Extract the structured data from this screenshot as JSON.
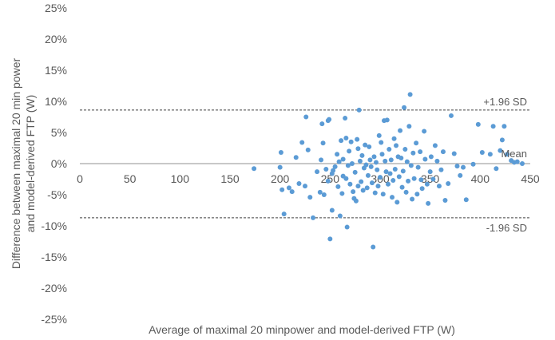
{
  "chart_data": {
    "type": "scatter",
    "xlabel": "Average of maximal 20 minpower and model-derived FTP (W)",
    "ylabel_line1": "Difference between maximal 20 min power",
    "ylabel_line2": "and model-derived FTP (W)",
    "xlim": [
      0,
      450
    ],
    "ylim": [
      -25,
      25
    ],
    "x_ticks": [
      0,
      50,
      100,
      150,
      200,
      250,
      300,
      350,
      400,
      450
    ],
    "y_ticks": [
      25,
      20,
      15,
      10,
      5,
      0,
      -5,
      -10,
      -15,
      -20,
      -25
    ],
    "x_tick_labels": [
      "0",
      "50",
      "100",
      "150",
      "200",
      "250",
      "300",
      "350",
      "400",
      "450"
    ],
    "y_tick_labels": [
      "25%",
      "20%",
      "15%",
      "10%",
      "5%",
      "0%",
      "-5%",
      "-10%",
      "-15%",
      "-20%",
      "-25%"
    ],
    "grid": false,
    "point_color": "#5b9bd5",
    "reference_lines": [
      {
        "label": "+1.96 SD",
        "y": 8.6,
        "style": "dashed"
      },
      {
        "label": "Mean",
        "y": 0,
        "style": "solid"
      },
      {
        "label": "-1.96 SD",
        "y": -8.7,
        "style": "dashed"
      }
    ],
    "points": [
      [
        174,
        -0.8
      ],
      [
        200,
        -0.6
      ],
      [
        201,
        1.8
      ],
      [
        202,
        -4.2
      ],
      [
        204,
        -8.1
      ],
      [
        209,
        -3.9
      ],
      [
        212,
        -4.5
      ],
      [
        216,
        1.0
      ],
      [
        219,
        -3.2
      ],
      [
        222,
        3.4
      ],
      [
        225,
        -3.6
      ],
      [
        226,
        7.5
      ],
      [
        228,
        2.2
      ],
      [
        230,
        -5.4
      ],
      [
        233,
        -8.7
      ],
      [
        237,
        -1.3
      ],
      [
        240,
        -4.6
      ],
      [
        241,
        0.6
      ],
      [
        242,
        6.4
      ],
      [
        243,
        3.3
      ],
      [
        244,
        -5.0
      ],
      [
        246,
        -0.9
      ],
      [
        248,
        6.9
      ],
      [
        248,
        -2.8
      ],
      [
        249,
        7.1
      ],
      [
        250,
        -12.1
      ],
      [
        252,
        -1.6
      ],
      [
        252,
        -7.5
      ],
      [
        253,
        -1.1
      ],
      [
        255,
        -0.5
      ],
      [
        257,
        1.5
      ],
      [
        258,
        -3.7
      ],
      [
        259,
        0.3
      ],
      [
        260,
        -8.4
      ],
      [
        261,
        3.7
      ],
      [
        262,
        -4.8
      ],
      [
        263,
        0.7
      ],
      [
        263,
        -2.0
      ],
      [
        265,
        7.3
      ],
      [
        266,
        4.1
      ],
      [
        266,
        -2.4
      ],
      [
        267,
        -10.2
      ],
      [
        268,
        -0.3
      ],
      [
        269,
        2.0
      ],
      [
        270,
        -3.3
      ],
      [
        271,
        3.5
      ],
      [
        272,
        0.0
      ],
      [
        273,
        -4.5
      ],
      [
        274,
        -5.6
      ],
      [
        275,
        -1.4
      ],
      [
        276,
        -6.0
      ],
      [
        277,
        3.9
      ],
      [
        278,
        2.4
      ],
      [
        278,
        -3.6
      ],
      [
        279,
        8.6
      ],
      [
        280,
        0.4
      ],
      [
        281,
        -2.9
      ],
      [
        282,
        1.3
      ],
      [
        283,
        -4.3
      ],
      [
        284,
        -0.7
      ],
      [
        285,
        3.0
      ],
      [
        286,
        -0.2
      ],
      [
        287,
        -3.9
      ],
      [
        288,
        -1.9
      ],
      [
        289,
        2.7
      ],
      [
        290,
        0.6
      ],
      [
        291,
        -0.5
      ],
      [
        292,
        -3.1
      ],
      [
        293,
        -13.4
      ],
      [
        294,
        1.1
      ],
      [
        295,
        -4.7
      ],
      [
        296,
        0.2
      ],
      [
        297,
        -1.0
      ],
      [
        298,
        -3.6
      ],
      [
        299,
        4.5
      ],
      [
        300,
        -2.2
      ],
      [
        301,
        3.4
      ],
      [
        302,
        1.5
      ],
      [
        303,
        -4.9
      ],
      [
        304,
        6.9
      ],
      [
        305,
        0.4
      ],
      [
        306,
        -1.3
      ],
      [
        307,
        7.0
      ],
      [
        308,
        -3.3
      ],
      [
        309,
        2.3
      ],
      [
        310,
        -1.6
      ],
      [
        311,
        0.6
      ],
      [
        312,
        -5.4
      ],
      [
        313,
        -2.7
      ],
      [
        314,
        4.0
      ],
      [
        315,
        -0.9
      ],
      [
        316,
        2.9
      ],
      [
        317,
        -6.2
      ],
      [
        318,
        1.1
      ],
      [
        319,
        -2.1
      ],
      [
        320,
        5.3
      ],
      [
        321,
        0.9
      ],
      [
        322,
        -3.8
      ],
      [
        323,
        -1.2
      ],
      [
        324,
        9.0
      ],
      [
        325,
        2.3
      ],
      [
        326,
        -4.6
      ],
      [
        327,
        0.3
      ],
      [
        328,
        -2.8
      ],
      [
        329,
        6.0
      ],
      [
        330,
        11.1
      ],
      [
        331,
        -0.3
      ],
      [
        332,
        -5.7
      ],
      [
        333,
        1.7
      ],
      [
        334,
        -2.4
      ],
      [
        336,
        3.3
      ],
      [
        337,
        -4.9
      ],
      [
        338,
        -0.6
      ],
      [
        340,
        1.9
      ],
      [
        341,
        -2.6
      ],
      [
        342,
        -4.0
      ],
      [
        344,
        5.2
      ],
      [
        345,
        0.7
      ],
      [
        347,
        -3.3
      ],
      [
        348,
        -6.4
      ],
      [
        350,
        -1.3
      ],
      [
        351,
        1.1
      ],
      [
        353,
        -2.5
      ],
      [
        355,
        2.9
      ],
      [
        357,
        0.4
      ],
      [
        359,
        -3.6
      ],
      [
        361,
        -1.0
      ],
      [
        363,
        1.9
      ],
      [
        365,
        -5.9
      ],
      [
        368,
        -3.2
      ],
      [
        371,
        7.7
      ],
      [
        374,
        1.6
      ],
      [
        377,
        -0.4
      ],
      [
        380,
        -1.9
      ],
      [
        383,
        -0.6
      ],
      [
        386,
        -5.8
      ],
      [
        393,
        -0.1
      ],
      [
        398,
        6.3
      ],
      [
        402,
        1.8
      ],
      [
        410,
        1.5
      ],
      [
        413,
        6.0
      ],
      [
        416,
        -0.8
      ],
      [
        420,
        2.1
      ],
      [
        422,
        3.8
      ],
      [
        424,
        6.0
      ],
      [
        427,
        1.5
      ],
      [
        431,
        0.5
      ],
      [
        434,
        0.2
      ],
      [
        437,
        0.3
      ],
      [
        442,
        0.0
      ]
    ]
  }
}
